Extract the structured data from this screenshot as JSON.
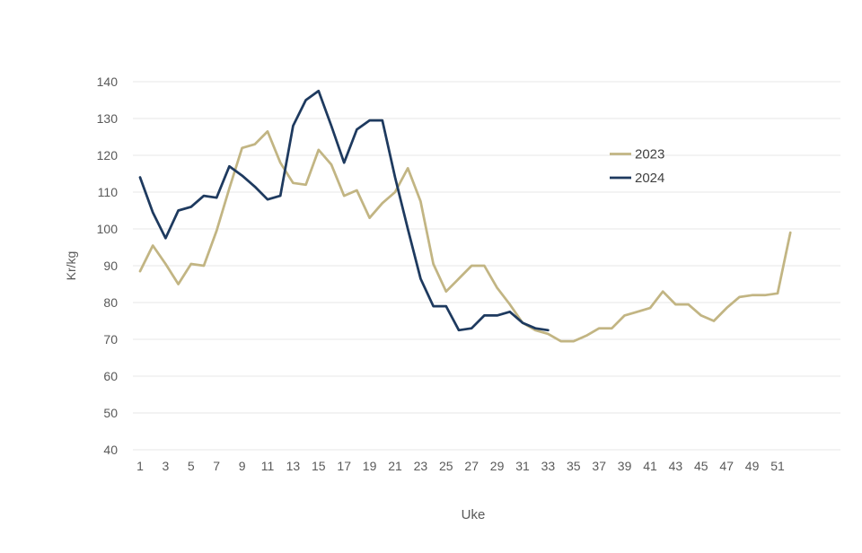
{
  "chart_data": {
    "type": "line",
    "title": "",
    "xlabel": "Uke",
    "ylabel": "Kr/kg",
    "ylim": [
      40,
      140
    ],
    "y_ticks": [
      40,
      50,
      60,
      70,
      80,
      90,
      100,
      110,
      120,
      130,
      140
    ],
    "x_tick_labels": [
      1,
      3,
      5,
      7,
      9,
      11,
      13,
      15,
      17,
      19,
      21,
      23,
      25,
      27,
      29,
      31,
      33,
      35,
      37,
      39,
      41,
      43,
      45,
      47,
      49,
      51
    ],
    "x_range": [
      1,
      52
    ],
    "grid": "horizontal",
    "legend_position": "center-right",
    "series": [
      {
        "name": "2023",
        "color": "#C2B583",
        "start_week": 1,
        "values": [
          88.5,
          95.5,
          90.5,
          85,
          90.5,
          90,
          99.5,
          111,
          122,
          123,
          126.5,
          118,
          112.5,
          112,
          121.5,
          117.5,
          109,
          110.5,
          103,
          107,
          110,
          116.5,
          107.5,
          90.5,
          83,
          86.5,
          90,
          90,
          84,
          79.5,
          74.5,
          72.5,
          71.5,
          69.5,
          69.5,
          71,
          73,
          73,
          76.5,
          77.5,
          78.5,
          83,
          79.5,
          79.5,
          76.5,
          75,
          78.5,
          81.5,
          82,
          82,
          82.5,
          99
        ]
      },
      {
        "name": "2024",
        "color": "#1E3A5F",
        "start_week": 1,
        "values": [
          114,
          104.5,
          97.5,
          105,
          106,
          109,
          108.5,
          117,
          114.5,
          111.5,
          108,
          109,
          128,
          135,
          137.5,
          128,
          118,
          127,
          129.5,
          129.5,
          114,
          100,
          86.5,
          79,
          79,
          72.5,
          73,
          76.5,
          76.5,
          77.5,
          74.5,
          73,
          72.5
        ]
      }
    ]
  },
  "legend": {
    "entries": [
      "2023",
      "2024"
    ]
  },
  "colors": {
    "tick_text": "#595959",
    "axis_title_text": "#595959",
    "legend_text": "#404040",
    "gridline": "#e7e7e7",
    "background": "#ffffff",
    "series_2023": "#C2B583",
    "series_2024": "#1E3A5F"
  }
}
